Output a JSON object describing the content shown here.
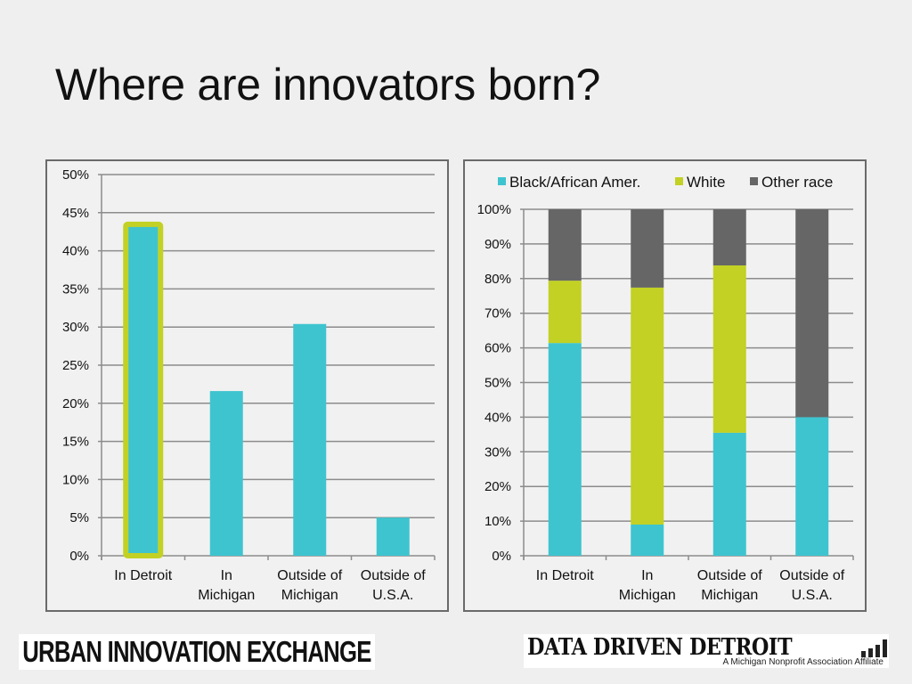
{
  "slide": {
    "title": "Where are innovators born?"
  },
  "logos": {
    "left": "URBAN INNOVATION EXCHANGE",
    "right_main": "DATA DRIVEN DETROIT",
    "right_sub": "A Michigan Nonprofit Association Affiliate"
  },
  "colors": {
    "black_african_amer": "#3ec4cf",
    "white": "#c2d123",
    "other_race": "#666666",
    "gridline": "#8c8c8c",
    "highlight_outline": "#c2d123"
  },
  "chart_data": [
    {
      "type": "bar",
      "title": "",
      "xlabel": "",
      "ylabel": "",
      "categories": [
        [
          "In Detroit"
        ],
        [
          "In",
          "Michigan"
        ],
        [
          "Outside of",
          "Michigan"
        ],
        [
          "Outside of",
          "U.S.A."
        ]
      ],
      "values": [
        43,
        21.6,
        30.4,
        5
      ],
      "highlighted_category_index": 0,
      "ylim": [
        0,
        50
      ],
      "yticks": [
        "0%",
        "5%",
        "10%",
        "15%",
        "20%",
        "25%",
        "30%",
        "35%",
        "40%",
        "45%",
        "50%"
      ],
      "grid": true,
      "legend": "none"
    },
    {
      "type": "bar",
      "stacked": true,
      "title": "",
      "xlabel": "",
      "ylabel": "",
      "categories": [
        [
          "In Detroit"
        ],
        [
          "In",
          "Michigan"
        ],
        [
          "Outside of",
          "Michigan"
        ],
        [
          "Outside of",
          "U.S.A."
        ]
      ],
      "series": [
        {
          "name": "Black/African Amer.",
          "values": [
            61.4,
            9,
            35.5,
            40
          ]
        },
        {
          "name": "White",
          "values": [
            18,
            68.4,
            48.3,
            0
          ]
        },
        {
          "name": "Other race",
          "values": [
            20.6,
            22.6,
            16.2,
            60
          ]
        }
      ],
      "ylim": [
        0,
        100
      ],
      "yticks": [
        "0%",
        "10%",
        "20%",
        "30%",
        "40%",
        "50%",
        "60%",
        "70%",
        "80%",
        "90%",
        "100%"
      ],
      "grid": true,
      "legend": "top"
    }
  ]
}
